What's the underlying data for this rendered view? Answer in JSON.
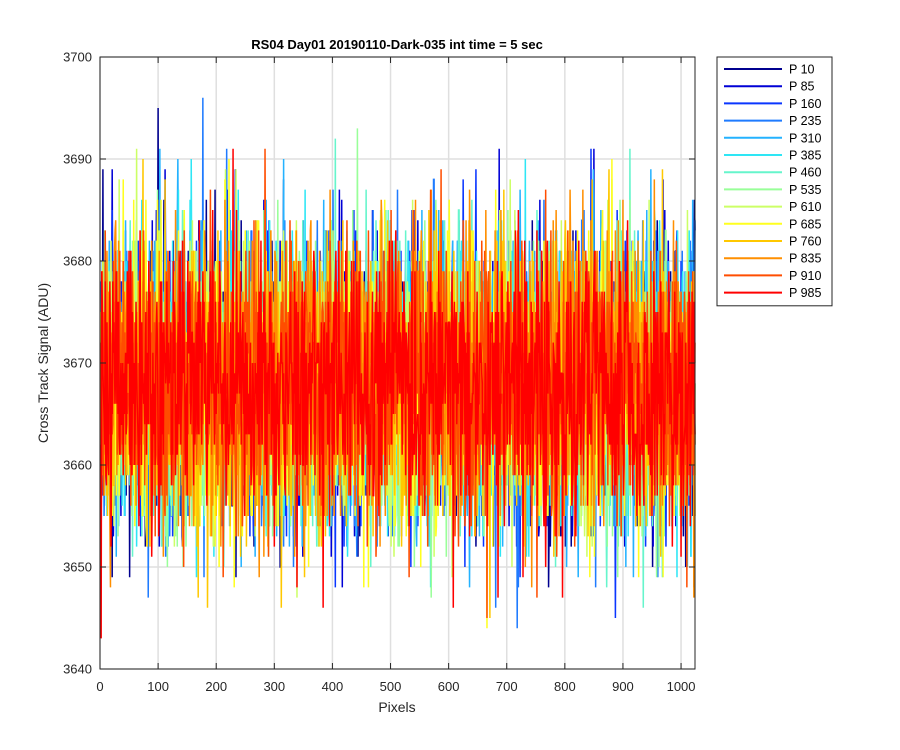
{
  "chart_data": {
    "type": "line",
    "title": "RS04 Day01 20190110-Dark-035 int time = 5 sec",
    "xlabel": "Pixels",
    "ylabel": "Cross Track Signal (ADU)",
    "xlim": [
      0,
      1024
    ],
    "ylim": [
      3640,
      3700
    ],
    "xticks": [
      0,
      100,
      200,
      300,
      400,
      500,
      600,
      700,
      800,
      900,
      1000
    ],
    "yticks": [
      3640,
      3650,
      3660,
      3670,
      3680,
      3690,
      3700
    ],
    "grid": true,
    "legend_position": "outside top-right",
    "noise_model": {
      "n_points": 1024,
      "mean": 3668,
      "spread_typical": 14,
      "spread_max": 28
    },
    "series": [
      {
        "name": "P 10",
        "color": "#00008f"
      },
      {
        "name": "P 85",
        "color": "#0000d6"
      },
      {
        "name": "P 160",
        "color": "#0a36ff"
      },
      {
        "name": "P 235",
        "color": "#1f7bff"
      },
      {
        "name": "P 310",
        "color": "#24b2ff"
      },
      {
        "name": "P 385",
        "color": "#2ee6f5"
      },
      {
        "name": "P 460",
        "color": "#66f5cc"
      },
      {
        "name": "P 535",
        "color": "#99ff99"
      },
      {
        "name": "P 610",
        "color": "#ccff66"
      },
      {
        "name": "P 685",
        "color": "#ffff1f"
      },
      {
        "name": "P 760",
        "color": "#ffc800"
      },
      {
        "name": "P 835",
        "color": "#ff8f00"
      },
      {
        "name": "P 910",
        "color": "#ff4d00"
      },
      {
        "name": "P 985",
        "color": "#ff0000"
      }
    ]
  }
}
